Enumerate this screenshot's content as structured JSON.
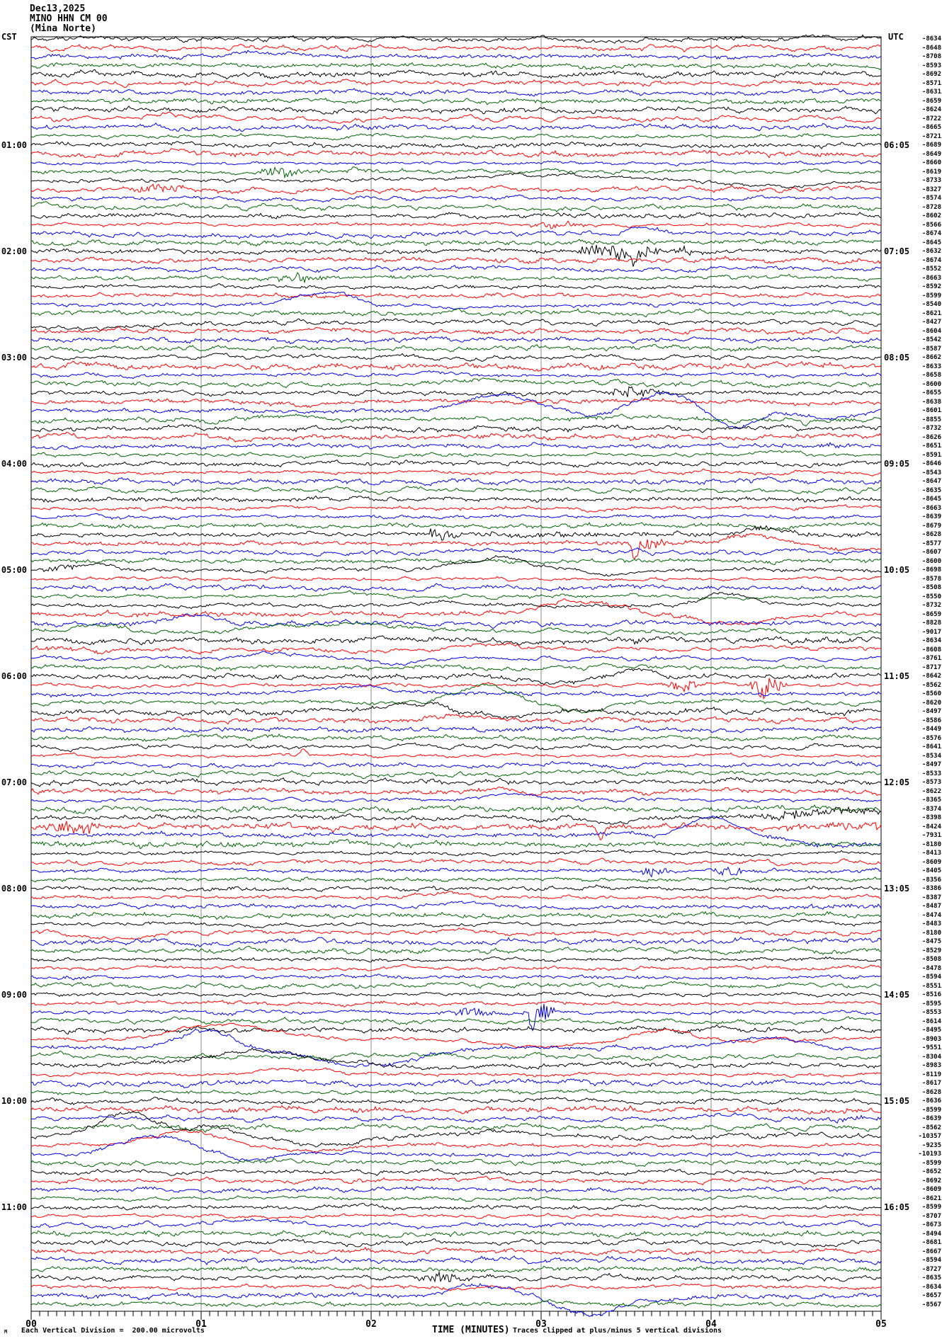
{
  "title": {
    "date": "Dec13,2025",
    "station": "MINO HHN CM 00",
    "location": "(Mina Norte)"
  },
  "axes": {
    "left_timezone": "CST",
    "right_timezone": "UTC",
    "left_hour_labels": [
      "01:00",
      "02:00",
      "03:00",
      "04:00",
      "05:00",
      "06:00",
      "07:00",
      "08:00",
      "09:00",
      "10:00",
      "11:00"
    ],
    "right_hour_labels": [
      "06:05",
      "07:05",
      "08:05",
      "09:05",
      "10:05",
      "11:05",
      "12:05",
      "13:05",
      "14:05",
      "15:05",
      "16:05"
    ],
    "x_tick_labels": [
      "00",
      "01",
      "02",
      "03",
      "04",
      "05"
    ],
    "x_axis_title": "TIME (MINUTES)",
    "clip_note": "Traces clipped at plus/minus 5 vertical divisions",
    "scale_note_glyph": "M",
    "scale_note": "Each Vertical Division =  200.00 microvolts"
  },
  "colors": {
    "trace_cycle": [
      "#000000",
      "#ff0000",
      "#0000ee",
      "#006400"
    ],
    "grid": "#8a8a8a",
    "border": "#000000"
  },
  "chart_data": {
    "type": "line",
    "description": "Helicorder (webicorder) seismogram: 144 trace lines, 5 minutes per line, 12 lines per hour, colors cycling black/red/blue/green. Left margin hour labels in CST, right margin hour labels in UTC, far-right column shows per-trace mean counts.",
    "minutes_per_line": 5,
    "lines_per_hour": 12,
    "num_lines": 144,
    "xlabel": "TIME (MINUTES)",
    "x_range": [
      0,
      5
    ],
    "x_tick_labels": [
      "00",
      "01",
      "02",
      "03",
      "04",
      "05"
    ],
    "vertical_division_microvolts": 200.0,
    "clip_divisions": 5,
    "trace_values": [
      "-8634",
      "-8648",
      "-8708",
      "-8593",
      "-8692",
      "-8571",
      "-8631",
      "-8659",
      "-8624",
      "-8722",
      "-8665",
      "-8721",
      "-8689",
      "-8649",
      "-8660",
      "-8619",
      "-8733",
      "-8327",
      "-8574",
      "-8728",
      "-8602",
      "-8566",
      "-8674",
      "-8645",
      "-8632",
      "-8674",
      "-8552",
      "-8663",
      "-8592",
      "-8599",
      "-8540",
      "-8621",
      "-8427",
      "-8604",
      "-8542",
      "-8587",
      "-8662",
      "-8633",
      "-8658",
      "-8600",
      "-8655",
      "-8638",
      "-8601",
      "-8855",
      "-8732",
      "-8626",
      "-8651",
      "-8591",
      "-8646",
      "-8543",
      "-8647",
      "-8635",
      "-8645",
      "-8663",
      "-8639",
      "-8679",
      "-8628",
      "-8577",
      "-8607",
      "-8600",
      "-8698",
      "-8578",
      "-8508",
      "-8550",
      "-8732",
      "-8659",
      "-8828",
      "-9017",
      "-8634",
      "-8608",
      "-8761",
      "-8717",
      "-8642",
      "-8562",
      "-8560",
      "-8620",
      "-8497",
      "-8586",
      "-8449",
      "-8576",
      "-8641",
      "-8534",
      "-8497",
      "-8533",
      "-8573",
      "-8622",
      "-8365",
      "-8374",
      "-8398",
      "-8424",
      "-7931",
      "-8180",
      "-8413",
      "-8609",
      "-8405",
      "-8356",
      "-8386",
      "-8387",
      "-8487",
      "-8474",
      "-8483",
      "-8180",
      "-8475",
      "-8529",
      "-8508",
      "-8478",
      "-8594",
      "-8551",
      "-8516",
      "-8595",
      "-8553",
      "-8614",
      "-8495",
      "-8903",
      "-9551",
      "-8304",
      "-8983",
      "-8119",
      "-8617",
      "-8628",
      "-8636",
      "-8599",
      "-8639",
      "-8562",
      "-10357",
      "-9235",
      "-10193",
      "-8599",
      "-8652",
      "-8692",
      "-8609",
      "-8621",
      "-8599",
      "-8707",
      "-8673",
      "-8494",
      "-8681",
      "-8667",
      "-8594",
      "-8727",
      "-8635",
      "-8634",
      "-8657",
      "-8567"
    ],
    "events": [
      [
        2,
        "h",
        1.0,
        1.7,
        5
      ],
      [
        9,
        "h",
        0.55,
        1.05,
        6
      ],
      [
        13,
        "h",
        0.6,
        1.05,
        5
      ],
      [
        15,
        "b",
        1.32,
        1.62,
        9
      ],
      [
        15,
        "n",
        1.62,
        2.2,
        3
      ],
      [
        15,
        "s",
        1.9,
        0,
        5
      ],
      [
        16,
        "h",
        2.3,
        3.7,
        9
      ],
      [
        16,
        "h",
        3.9,
        4.9,
        -7
      ],
      [
        17,
        "b",
        0.55,
        0.95,
        5
      ],
      [
        17,
        "n",
        0.95,
        1.3,
        2
      ],
      [
        21,
        "b",
        2.9,
        3.3,
        5
      ],
      [
        21,
        "n",
        0,
        5,
        1.2
      ],
      [
        22,
        "h",
        3.4,
        3.8,
        4
      ],
      [
        24,
        "b",
        3.15,
        3.75,
        10
      ],
      [
        24,
        "s",
        3.55,
        0,
        -20
      ],
      [
        24,
        "b",
        3.75,
        3.95,
        5
      ],
      [
        27,
        "b",
        1.35,
        1.8,
        6
      ],
      [
        30,
        "h",
        1.5,
        2.0,
        18
      ],
      [
        30,
        "h",
        2.05,
        2.9,
        -6
      ],
      [
        32,
        "h",
        -0.3,
        0.9,
        -10
      ],
      [
        37,
        "n",
        0,
        5,
        2
      ],
      [
        38,
        "h",
        2.2,
        2.6,
        5
      ],
      [
        39,
        "h",
        2.5,
        3.1,
        5
      ],
      [
        40,
        "b",
        3.35,
        3.75,
        7
      ],
      [
        41,
        "h",
        1.4,
        1.8,
        -5
      ],
      [
        42,
        "h",
        2.4,
        3.1,
        22
      ],
      [
        42,
        "h",
        3.15,
        3.5,
        -8
      ],
      [
        42,
        "h",
        3.45,
        4.0,
        25
      ],
      [
        42,
        "h",
        3.95,
        4.35,
        -25
      ],
      [
        42,
        "h",
        4.45,
        4.95,
        -10
      ],
      [
        43,
        "h",
        1.35,
        1.75,
        8
      ],
      [
        43,
        "s",
        4.55,
        0,
        -8
      ],
      [
        46,
        "n",
        4.2,
        5,
        3
      ],
      [
        47,
        "h",
        4.3,
        4.6,
        5
      ],
      [
        53,
        "h",
        3.1,
        3.5,
        -5
      ],
      [
        56,
        "n",
        2.2,
        5,
        4
      ],
      [
        56,
        "b",
        2.25,
        2.55,
        6
      ],
      [
        56,
        "h",
        4.1,
        4.5,
        8
      ],
      [
        57,
        "b",
        3.45,
        3.75,
        10
      ],
      [
        57,
        "s",
        3.55,
        0,
        -14
      ],
      [
        57,
        "h",
        4.0,
        4.5,
        13
      ],
      [
        57,
        "h",
        4.5,
        5.3,
        -10
      ],
      [
        60,
        "b",
        0.05,
        0.3,
        5
      ],
      [
        60,
        "h",
        0.2,
        0.6,
        7
      ],
      [
        60,
        "h",
        2.4,
        3.1,
        18
      ],
      [
        60,
        "h",
        3.15,
        3.6,
        -8
      ],
      [
        62,
        "n",
        0.3,
        0.8,
        2
      ],
      [
        63,
        "h",
        1.7,
        2.0,
        5
      ],
      [
        64,
        "h",
        2.3,
        2.6,
        5
      ],
      [
        64,
        "h",
        3.85,
        4.35,
        15
      ],
      [
        65,
        "h",
        2.8,
        3.6,
        18
      ],
      [
        65,
        "h",
        3.7,
        4.6,
        -12
      ],
      [
        66,
        "h",
        0.7,
        1.15,
        12
      ],
      [
        67,
        "h",
        0.15,
        0.6,
        10
      ],
      [
        67,
        "h",
        1.05,
        2.55,
        11
      ],
      [
        68,
        "h",
        1.85,
        2.35,
        6
      ],
      [
        68,
        "b",
        3.5,
        3.65,
        3
      ],
      [
        69,
        "n",
        0,
        0.8,
        3
      ],
      [
        69,
        "h",
        2.5,
        2.95,
        8
      ],
      [
        69,
        "h",
        4.15,
        4.55,
        6
      ],
      [
        70,
        "h",
        1.15,
        1.75,
        7
      ],
      [
        70,
        "h",
        1.95,
        2.45,
        -8
      ],
      [
        72,
        "h",
        2.75,
        3.35,
        -8
      ],
      [
        72,
        "h",
        3.4,
        3.8,
        6
      ],
      [
        73,
        "b",
        3.7,
        4.0,
        7
      ],
      [
        73,
        "b",
        4.2,
        4.45,
        12
      ],
      [
        73,
        "s",
        4.3,
        0,
        -14
      ],
      [
        74,
        "h",
        1.45,
        2.35,
        10
      ],
      [
        75,
        "h",
        2.35,
        2.95,
        25
      ],
      [
        75,
        "h",
        2.95,
        3.5,
        -10
      ],
      [
        75,
        "h",
        3.85,
        4.35,
        6
      ],
      [
        76,
        "h",
        2.05,
        2.5,
        12
      ],
      [
        76,
        "h",
        2.55,
        3.0,
        -6
      ],
      [
        77,
        "h",
        2.3,
        2.8,
        8
      ],
      [
        81,
        "s",
        1.6,
        0,
        8
      ],
      [
        86,
        "h",
        2.5,
        3.2,
        6
      ],
      [
        88,
        "h",
        3.25,
        3.6,
        -8
      ],
      [
        88,
        "n",
        4.3,
        5,
        9
      ],
      [
        88,
        "h",
        4.35,
        5.2,
        10
      ],
      [
        89,
        "n",
        0,
        5,
        4
      ],
      [
        89,
        "b",
        0.02,
        0.5,
        9
      ],
      [
        89,
        "s",
        3.35,
        0,
        -14
      ],
      [
        89,
        "n",
        4.4,
        5,
        6
      ],
      [
        90,
        "n",
        0,
        3.7,
        3
      ],
      [
        90,
        "h",
        3.75,
        4.25,
        26
      ],
      [
        90,
        "h",
        4.3,
        5.3,
        -14
      ],
      [
        90,
        "n",
        4.3,
        5,
        4
      ],
      [
        91,
        "n",
        0,
        2.5,
        3
      ],
      [
        93,
        "h",
        0.2,
        0.8,
        -4
      ],
      [
        94,
        "b",
        3.55,
        3.8,
        6
      ],
      [
        94,
        "b",
        4.0,
        4.2,
        7
      ],
      [
        97,
        "h",
        2.2,
        2.6,
        5
      ],
      [
        98,
        "h",
        2.3,
        2.75,
        6
      ],
      [
        98,
        "n",
        4.5,
        5,
        4
      ],
      [
        100,
        "h",
        3.35,
        3.75,
        5
      ],
      [
        100,
        "h",
        4.35,
        4.75,
        5
      ],
      [
        101,
        "h",
        0.25,
        0.8,
        -9
      ],
      [
        101,
        "h",
        2.3,
        2.7,
        5
      ],
      [
        110,
        "b",
        2.45,
        2.75,
        7
      ],
      [
        110,
        "b",
        2.88,
        3.1,
        13
      ],
      [
        110,
        "s",
        2.95,
        0,
        -16
      ],
      [
        113,
        "h",
        0.65,
        1.6,
        20
      ],
      [
        113,
        "h",
        2.5,
        3.4,
        -10
      ],
      [
        113,
        "h",
        3.45,
        4.0,
        12
      ],
      [
        113,
        "h",
        4.0,
        4.4,
        -5
      ],
      [
        114,
        "h",
        0.75,
        1.3,
        24
      ],
      [
        114,
        "h",
        1.45,
        2.5,
        -26
      ],
      [
        114,
        "h",
        3.95,
        4.65,
        14
      ],
      [
        116,
        "h",
        0.8,
        1.9,
        20
      ],
      [
        116,
        "h",
        2.0,
        2.6,
        -6
      ],
      [
        117,
        "h",
        1.2,
        2.0,
        8
      ],
      [
        121,
        "n",
        0,
        5,
        2.5
      ],
      [
        122,
        "h",
        3.9,
        4.3,
        6
      ],
      [
        122,
        "n",
        4.5,
        5,
        4
      ],
      [
        124,
        "h",
        0.3,
        0.85,
        34
      ],
      [
        124,
        "h",
        0.85,
        1.25,
        14
      ],
      [
        124,
        "h",
        1.35,
        2.1,
        -12
      ],
      [
        124,
        "h",
        2.3,
        3.2,
        6
      ],
      [
        125,
        "h",
        0.55,
        1.25,
        20
      ],
      [
        125,
        "h",
        1.3,
        1.9,
        -10
      ],
      [
        126,
        "h",
        0.35,
        1.05,
        25
      ],
      [
        126,
        "h",
        1.1,
        1.5,
        -6
      ],
      [
        134,
        "h",
        0.9,
        1.6,
        7
      ],
      [
        140,
        "b",
        2.2,
        2.65,
        7
      ],
      [
        142,
        "h",
        2.35,
        2.95,
        15
      ],
      [
        142,
        "h",
        2.95,
        3.6,
        -26
      ],
      [
        142,
        "h",
        3.6,
        4.0,
        -6
      ]
    ]
  }
}
